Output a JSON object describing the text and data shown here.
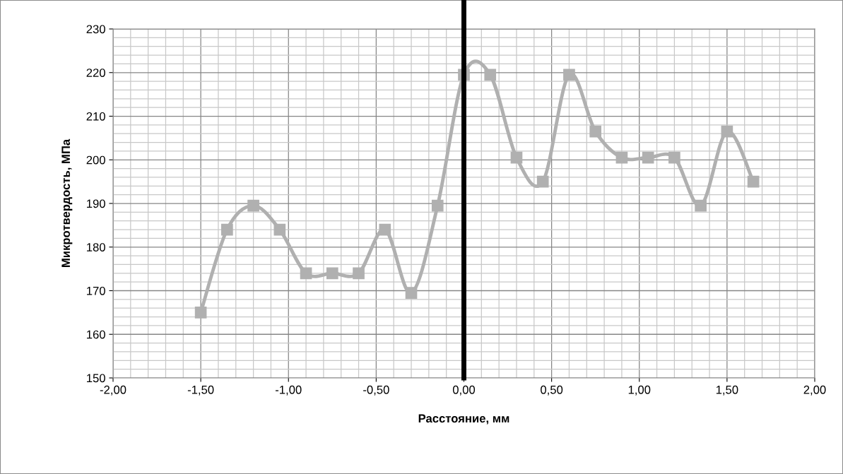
{
  "chart_data": {
    "type": "line",
    "xlabel": "Расстояние, мм",
    "ylabel": "Микротвердость, МПа",
    "x": [
      -1.5,
      -1.35,
      -1.2,
      -1.05,
      -0.9,
      -0.75,
      -0.6,
      -0.45,
      -0.3,
      -0.15,
      0,
      0.15,
      0.3,
      0.45,
      0.6,
      0.75,
      0.9,
      1.05,
      1.2,
      1.35,
      1.5,
      1.65
    ],
    "series": [
      {
        "color": "#b0b0b0",
        "values": [
          165,
          184,
          189.5,
          184,
          174,
          174,
          174,
          184,
          169.5,
          189.5,
          219.5,
          219.5,
          200.5,
          195,
          219.5,
          206.5,
          200.5,
          200.5,
          200.5,
          189.5,
          206.5,
          195
        ]
      }
    ],
    "marker": "square",
    "line_style": "solid",
    "grid": true,
    "legend": false,
    "xlim": [
      -2,
      2
    ],
    "ylim": [
      150,
      230
    ],
    "xticks": [
      {
        "value": -2,
        "label": "-2,00"
      },
      {
        "value": -1.5,
        "label": "-1,50"
      },
      {
        "value": -1,
        "label": "-1,00"
      },
      {
        "value": -0.5,
        "label": "-0,50"
      },
      {
        "value": 0,
        "label": "0,00"
      },
      {
        "value": 0.5,
        "label": "0,50"
      },
      {
        "value": 1,
        "label": "1,00"
      },
      {
        "value": 1.5,
        "label": "1,50"
      },
      {
        "value": 2,
        "label": "2,00"
      }
    ],
    "yticks": [
      150,
      160,
      170,
      180,
      190,
      200,
      210,
      220,
      230
    ],
    "ref_lines": [
      {
        "axis": "x",
        "value": 0,
        "label": null,
        "color": "#000000",
        "line_style": "solid"
      }
    ]
  }
}
